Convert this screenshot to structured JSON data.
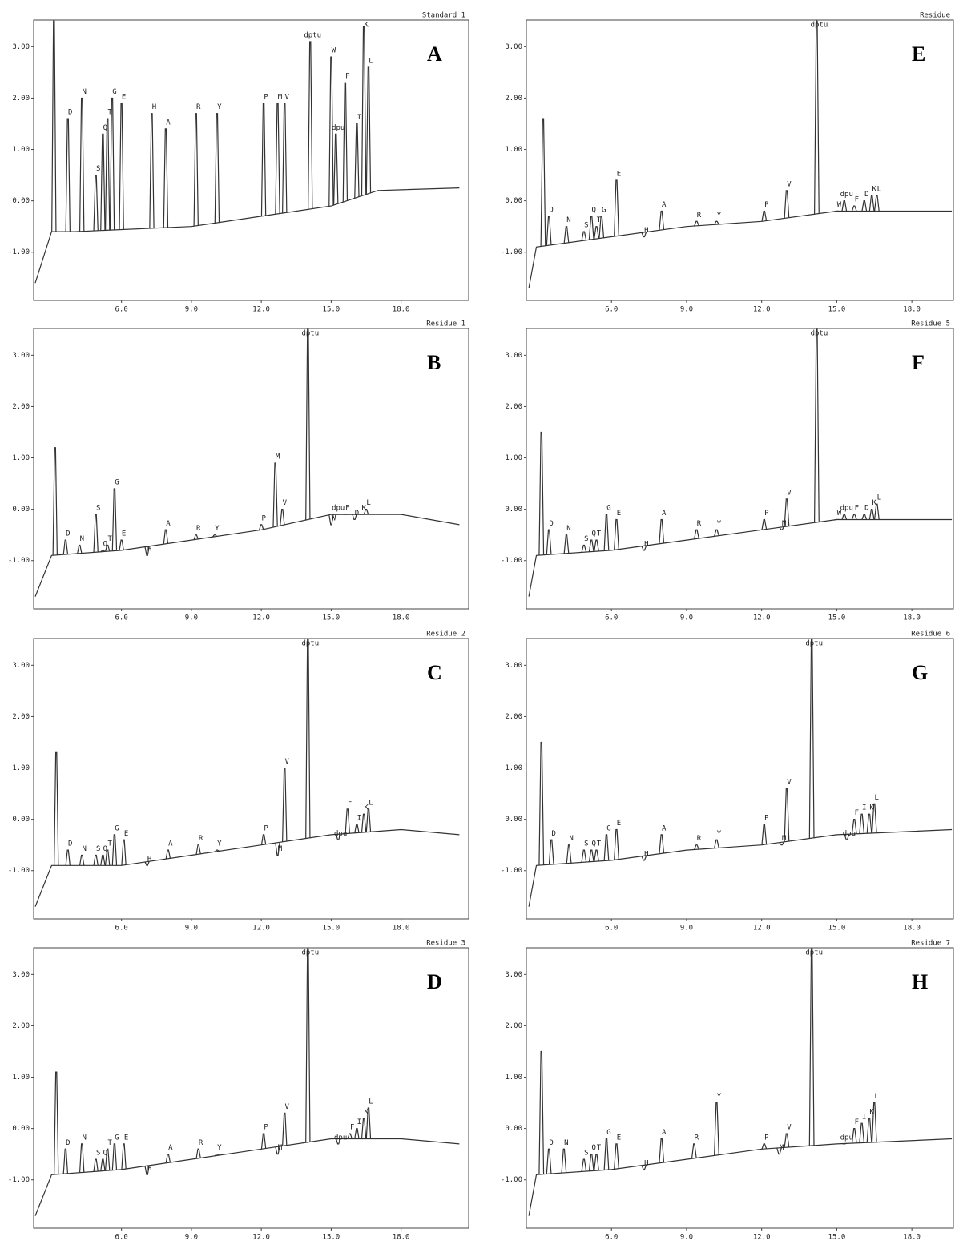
{
  "chart_data": [
    {
      "type": "line",
      "title": "Standard 1",
      "annotations": [
        "A"
      ],
      "peaks": {
        "labels": [
          null,
          "D",
          "N",
          "S",
          "Q",
          "T",
          "G",
          "E",
          "H",
          "A",
          "R",
          "Y",
          "P",
          "M",
          "V",
          "dptu",
          "W",
          "dpu",
          "F",
          "I",
          "K",
          "L"
        ],
        "x": [
          3.1,
          3.7,
          4.3,
          4.9,
          5.2,
          5.4,
          5.6,
          6.0,
          7.3,
          7.9,
          9.2,
          10.1,
          12.1,
          12.7,
          13.0,
          14.1,
          15.0,
          15.2,
          15.6,
          16.1,
          16.4,
          16.6
        ],
        "values": [
          3.5,
          1.6,
          2.0,
          0.5,
          1.3,
          1.6,
          2.0,
          1.9,
          1.7,
          1.4,
          1.7,
          1.7,
          1.9,
          1.9,
          1.9,
          3.1,
          2.8,
          1.3,
          2.3,
          1.5,
          3.4,
          2.6
        ]
      },
      "baseline": {
        "x": [
          2.3,
          3.0,
          4.0,
          9.0,
          12.0,
          15.0,
          17.0,
          20.5
        ],
        "values": [
          -1.6,
          -0.6,
          -0.6,
          -0.5,
          -0.3,
          -0.1,
          0.2,
          0.25
        ]
      },
      "xlim": [
        2.23,
        20.9
      ],
      "ylim": [
        -1.94,
        3.52
      ],
      "xticks": [
        {
          "value": 6,
          "label": "6.0"
        },
        {
          "value": 9,
          "label": "9.0"
        },
        {
          "value": 12,
          "label": "12.0"
        },
        {
          "value": 15,
          "label": "15.0"
        },
        {
          "value": 18,
          "label": "18.0"
        }
      ],
      "yticks": [
        {
          "value": 3,
          "label": "3.00"
        },
        {
          "value": 2,
          "label": "2.00"
        },
        {
          "value": 1,
          "label": "1.00"
        },
        {
          "value": 0,
          "label": "0.00"
        },
        {
          "value": -1,
          "label": "-1.00"
        }
      ]
    },
    {
      "type": "line",
      "title": "Residue 1",
      "annotations": [
        "B"
      ],
      "peaks": {
        "labels": [
          null,
          "D",
          "N",
          "S",
          "Q",
          "T",
          "G",
          "E",
          "H",
          "A",
          "R",
          "Y",
          "P",
          "M",
          "V",
          "dptu",
          "W",
          "dpu",
          "F",
          "D",
          "K",
          "L"
        ],
        "x": [
          3.15,
          3.6,
          4.2,
          4.9,
          5.2,
          5.4,
          5.7,
          6.0,
          7.1,
          7.9,
          9.2,
          10.0,
          12.0,
          12.6,
          12.9,
          14.0,
          15.0,
          15.2,
          15.6,
          16.0,
          16.3,
          16.5
        ],
        "values": [
          1.2,
          -0.6,
          -0.7,
          -0.1,
          -0.8,
          -0.7,
          0.4,
          -0.6,
          -0.9,
          -0.4,
          -0.5,
          -0.5,
          -0.3,
          0.9,
          0.0,
          3.5,
          -0.3,
          -0.1,
          -0.1,
          -0.2,
          -0.1,
          0.0
        ]
      },
      "baseline": {
        "x": [
          2.3,
          3.0,
          6.0,
          9.0,
          12.0,
          15.0,
          18.0,
          20.5
        ],
        "values": [
          -1.7,
          -0.9,
          -0.8,
          -0.6,
          -0.4,
          -0.1,
          -0.1,
          -0.3
        ]
      },
      "xlim": [
        2.23,
        20.9
      ],
      "ylim": [
        -1.94,
        3.52
      ],
      "xticks": [
        {
          "value": 6,
          "label": "6.0"
        },
        {
          "value": 9,
          "label": "9.0"
        },
        {
          "value": 12,
          "label": "12.0"
        },
        {
          "value": 15,
          "label": "15.0"
        },
        {
          "value": 18,
          "label": "18.0"
        }
      ],
      "yticks": [
        {
          "value": 3,
          "label": "3.00"
        },
        {
          "value": 2,
          "label": "2.00"
        },
        {
          "value": 1,
          "label": "1.00"
        },
        {
          "value": 0,
          "label": "0.00"
        },
        {
          "value": -1,
          "label": "-1.00"
        }
      ]
    },
    {
      "type": "line",
      "title": "Residue 2",
      "annotations": [
        "C"
      ],
      "peaks": {
        "labels": [
          null,
          "D",
          "N",
          "S",
          "Q",
          "T",
          "G",
          "E",
          "H",
          "A",
          "R",
          "Y",
          "P",
          "M",
          "V",
          "dptu",
          "dpu",
          "F",
          "I",
          "K",
          "L"
        ],
        "x": [
          3.2,
          3.7,
          4.3,
          4.9,
          5.2,
          5.4,
          5.7,
          6.1,
          7.1,
          8.0,
          9.3,
          10.1,
          12.1,
          12.7,
          13.0,
          14.0,
          15.3,
          15.7,
          16.1,
          16.4,
          16.6
        ],
        "values": [
          1.3,
          -0.6,
          -0.7,
          -0.7,
          -0.7,
          -0.6,
          -0.3,
          -0.4,
          -0.9,
          -0.6,
          -0.5,
          -0.6,
          -0.3,
          -0.7,
          1.0,
          3.5,
          -0.4,
          0.2,
          -0.1,
          0.1,
          0.2
        ]
      },
      "baseline": {
        "x": [
          2.3,
          3.0,
          6.0,
          9.0,
          12.0,
          15.0,
          18.0,
          20.5
        ],
        "values": [
          -1.7,
          -0.9,
          -0.9,
          -0.7,
          -0.5,
          -0.3,
          -0.2,
          -0.3
        ]
      },
      "xlim": [
        2.23,
        20.9
      ],
      "ylim": [
        -1.94,
        3.52
      ],
      "xticks": [
        {
          "value": 6,
          "label": "6.0"
        },
        {
          "value": 9,
          "label": "9.0"
        },
        {
          "value": 12,
          "label": "12.0"
        },
        {
          "value": 15,
          "label": "15.0"
        },
        {
          "value": 18,
          "label": "18.0"
        }
      ],
      "yticks": [
        {
          "value": 3,
          "label": "3.00"
        },
        {
          "value": 2,
          "label": "2.00"
        },
        {
          "value": 1,
          "label": "1.00"
        },
        {
          "value": 0,
          "label": "0.00"
        },
        {
          "value": -1,
          "label": "-1.00"
        }
      ]
    },
    {
      "type": "line",
      "title": "Residue 3",
      "annotations": [
        "D"
      ],
      "peaks": {
        "labels": [
          null,
          "D",
          "N",
          "S",
          "Q",
          "T",
          "G",
          "E",
          "H",
          "A",
          "R",
          "Y",
          "P",
          "M",
          "V",
          "dptu",
          "dpu",
          "F",
          "I",
          "K",
          "L"
        ],
        "x": [
          3.2,
          3.6,
          4.3,
          4.9,
          5.2,
          5.4,
          5.7,
          6.1,
          7.1,
          8.0,
          9.3,
          10.1,
          12.1,
          12.7,
          13.0,
          14.0,
          15.3,
          15.8,
          16.1,
          16.4,
          16.6
        ],
        "values": [
          1.1,
          -0.4,
          -0.3,
          -0.6,
          -0.6,
          -0.4,
          -0.3,
          -0.3,
          -0.9,
          -0.5,
          -0.4,
          -0.5,
          -0.1,
          -0.5,
          0.3,
          3.5,
          -0.3,
          -0.1,
          0.0,
          0.2,
          0.4
        ]
      },
      "baseline": {
        "x": [
          2.3,
          3.0,
          6.0,
          9.0,
          12.0,
          15.0,
          18.0,
          20.5
        ],
        "values": [
          -1.7,
          -0.9,
          -0.8,
          -0.6,
          -0.4,
          -0.2,
          -0.2,
          -0.3
        ]
      },
      "xlim": [
        2.23,
        20.9
      ],
      "ylim": [
        -1.94,
        3.52
      ],
      "xticks": [
        {
          "value": 6,
          "label": "6.0"
        },
        {
          "value": 9,
          "label": "9.0"
        },
        {
          "value": 12,
          "label": "12.0"
        },
        {
          "value": 15,
          "label": "15.0"
        },
        {
          "value": 18,
          "label": "18.0"
        }
      ],
      "yticks": [
        {
          "value": 3,
          "label": "3.00"
        },
        {
          "value": 2,
          "label": "2.00"
        },
        {
          "value": 1,
          "label": "1.00"
        },
        {
          "value": 0,
          "label": "0.00"
        },
        {
          "value": -1,
          "label": "-1.00"
        }
      ]
    },
    {
      "type": "line",
      "title": "Residue",
      "annotations": [
        "E"
      ],
      "peaks": {
        "labels": [
          null,
          "D",
          "N",
          "S",
          "Q",
          "T",
          "G",
          "E",
          "H",
          "A",
          "R",
          "Y",
          "P",
          "V",
          "dptu",
          "W",
          "dpu",
          "F",
          "D",
          "K",
          "L"
        ],
        "x": [
          3.27,
          3.5,
          4.2,
          4.9,
          5.2,
          5.4,
          5.6,
          6.2,
          7.3,
          8.0,
          9.4,
          10.2,
          12.1,
          13.0,
          14.2,
          15.0,
          15.3,
          15.7,
          16.1,
          16.4,
          16.6
        ],
        "values": [
          1.6,
          -0.3,
          -0.5,
          -0.6,
          -0.3,
          -0.5,
          -0.3,
          0.4,
          -0.7,
          -0.2,
          -0.4,
          -0.4,
          -0.2,
          0.2,
          3.5,
          -0.2,
          0.0,
          -0.1,
          0.0,
          0.1,
          0.1
        ]
      },
      "baseline": {
        "x": [
          2.7,
          3.0,
          6.0,
          9.0,
          12.0,
          15.0,
          19.6
        ],
        "values": [
          -1.7,
          -0.9,
          -0.7,
          -0.5,
          -0.4,
          -0.2,
          -0.2
        ]
      },
      "xlim": [
        2.6,
        19.66
      ],
      "ylim": [
        -1.94,
        3.52
      ],
      "xticks": [
        {
          "value": 6,
          "label": "6.0"
        },
        {
          "value": 9,
          "label": "9.0"
        },
        {
          "value": 12,
          "label": "12.0"
        },
        {
          "value": 15,
          "label": "15.0"
        },
        {
          "value": 18,
          "label": "18.0"
        }
      ],
      "yticks": [
        {
          "value": 3,
          "label": "3.00"
        },
        {
          "value": 2,
          "label": "2.00"
        },
        {
          "value": 1,
          "label": "1.00"
        },
        {
          "value": 0,
          "label": "0.00"
        },
        {
          "value": -1,
          "label": "-1.00"
        }
      ]
    },
    {
      "type": "line",
      "title": "Residue 5",
      "annotations": [
        "F"
      ],
      "peaks": {
        "labels": [
          null,
          "D",
          "N",
          "S",
          "Q",
          "T",
          "G",
          "E",
          "H",
          "A",
          "R",
          "Y",
          "P",
          "M",
          "V",
          "dptu",
          "W",
          "dpu",
          "F",
          "D",
          "K",
          "L"
        ],
        "x": [
          3.2,
          3.5,
          4.2,
          4.9,
          5.2,
          5.4,
          5.8,
          6.2,
          7.3,
          8.0,
          9.4,
          10.2,
          12.1,
          12.8,
          13.0,
          14.2,
          15.0,
          15.3,
          15.7,
          16.1,
          16.4,
          16.6
        ],
        "values": [
          1.5,
          -0.4,
          -0.5,
          -0.7,
          -0.6,
          -0.6,
          -0.1,
          -0.2,
          -0.8,
          -0.2,
          -0.4,
          -0.4,
          -0.2,
          -0.4,
          0.2,
          3.5,
          -0.2,
          -0.1,
          -0.1,
          -0.1,
          0.0,
          0.1
        ]
      },
      "baseline": {
        "x": [
          2.7,
          3.0,
          6.0,
          9.0,
          12.0,
          15.0,
          19.6
        ],
        "values": [
          -1.7,
          -0.9,
          -0.8,
          -0.6,
          -0.4,
          -0.2,
          -0.2
        ]
      },
      "xlim": [
        2.6,
        19.66
      ],
      "ylim": [
        -1.94,
        3.52
      ],
      "xticks": [
        {
          "value": 6,
          "label": "6.0"
        },
        {
          "value": 9,
          "label": "9.0"
        },
        {
          "value": 12,
          "label": "12.0"
        },
        {
          "value": 15,
          "label": "15.0"
        },
        {
          "value": 18,
          "label": "18.0"
        }
      ],
      "yticks": [
        {
          "value": 3,
          "label": "3.00"
        },
        {
          "value": 2,
          "label": "2.00"
        },
        {
          "value": 1,
          "label": "1.00"
        },
        {
          "value": 0,
          "label": "0.00"
        },
        {
          "value": -1,
          "label": "-1.00"
        }
      ]
    },
    {
      "type": "line",
      "title": "Residue 6",
      "annotations": [
        "G"
      ],
      "peaks": {
        "labels": [
          null,
          "D",
          "N",
          "S",
          "Q",
          "T",
          "G",
          "E",
          "H",
          "A",
          "R",
          "Y",
          "P",
          "M",
          "V",
          "dptu",
          "dpu",
          "F",
          "I",
          "K",
          "L"
        ],
        "x": [
          3.2,
          3.6,
          4.3,
          4.9,
          5.2,
          5.4,
          5.8,
          6.2,
          7.3,
          8.0,
          9.4,
          10.2,
          12.1,
          12.8,
          13.0,
          14.0,
          15.4,
          15.7,
          16.0,
          16.3,
          16.5
        ],
        "values": [
          1.5,
          -0.4,
          -0.5,
          -0.6,
          -0.6,
          -0.6,
          -0.3,
          -0.2,
          -0.8,
          -0.3,
          -0.5,
          -0.4,
          -0.1,
          -0.5,
          0.6,
          3.5,
          -0.4,
          0.0,
          0.1,
          0.1,
          0.3
        ]
      },
      "baseline": {
        "x": [
          2.7,
          3.0,
          6.0,
          9.0,
          12.0,
          15.0,
          19.6
        ],
        "values": [
          -1.7,
          -0.9,
          -0.8,
          -0.6,
          -0.5,
          -0.3,
          -0.2
        ]
      },
      "xlim": [
        2.6,
        19.66
      ],
      "ylim": [
        -1.94,
        3.52
      ],
      "xticks": [
        {
          "value": 6,
          "label": "6.0"
        },
        {
          "value": 9,
          "label": "9.0"
        },
        {
          "value": 12,
          "label": "12.0"
        },
        {
          "value": 15,
          "label": "15.0"
        },
        {
          "value": 18,
          "label": "18.0"
        }
      ],
      "yticks": [
        {
          "value": 3,
          "label": "3.00"
        },
        {
          "value": 2,
          "label": "2.00"
        },
        {
          "value": 1,
          "label": "1.00"
        },
        {
          "value": 0,
          "label": "0.00"
        },
        {
          "value": -1,
          "label": "-1.00"
        }
      ]
    },
    {
      "type": "line",
      "title": "Residue 7",
      "annotations": [
        "H"
      ],
      "peaks": {
        "labels": [
          null,
          "D",
          "N",
          "S",
          "Q",
          "T",
          "G",
          "E",
          "H",
          "A",
          "R",
          "Y",
          "P",
          "M",
          "V",
          "dptu",
          "dpu",
          "F",
          "I",
          "K",
          "L"
        ],
        "x": [
          3.2,
          3.5,
          4.1,
          4.9,
          5.2,
          5.4,
          5.8,
          6.2,
          7.3,
          8.0,
          9.3,
          10.2,
          12.1,
          12.7,
          13.0,
          14.0,
          15.3,
          15.7,
          16.0,
          16.3,
          16.5
        ],
        "values": [
          1.5,
          -0.4,
          -0.4,
          -0.6,
          -0.5,
          -0.5,
          -0.2,
          -0.3,
          -0.8,
          -0.2,
          -0.3,
          0.5,
          -0.3,
          -0.5,
          -0.1,
          3.5,
          -0.3,
          0.0,
          0.1,
          0.2,
          0.5
        ]
      },
      "baseline": {
        "x": [
          2.7,
          3.0,
          6.0,
          9.0,
          12.0,
          15.0,
          19.6
        ],
        "values": [
          -1.7,
          -0.9,
          -0.8,
          -0.6,
          -0.4,
          -0.3,
          -0.2
        ]
      },
      "xlim": [
        2.6,
        19.66
      ],
      "ylim": [
        -1.94,
        3.52
      ],
      "xticks": [
        {
          "value": 6,
          "label": "6.0"
        },
        {
          "value": 9,
          "label": "9.0"
        },
        {
          "value": 12,
          "label": "12.0"
        },
        {
          "value": 15,
          "label": "15.0"
        },
        {
          "value": 18,
          "label": "18.0"
        }
      ],
      "yticks": [
        {
          "value": 3,
          "label": "3.00"
        },
        {
          "value": 2,
          "label": "2.00"
        },
        {
          "value": 1,
          "label": "1.00"
        },
        {
          "value": 0,
          "label": "0.00"
        },
        {
          "value": -1,
          "label": "-1.00"
        }
      ]
    }
  ]
}
